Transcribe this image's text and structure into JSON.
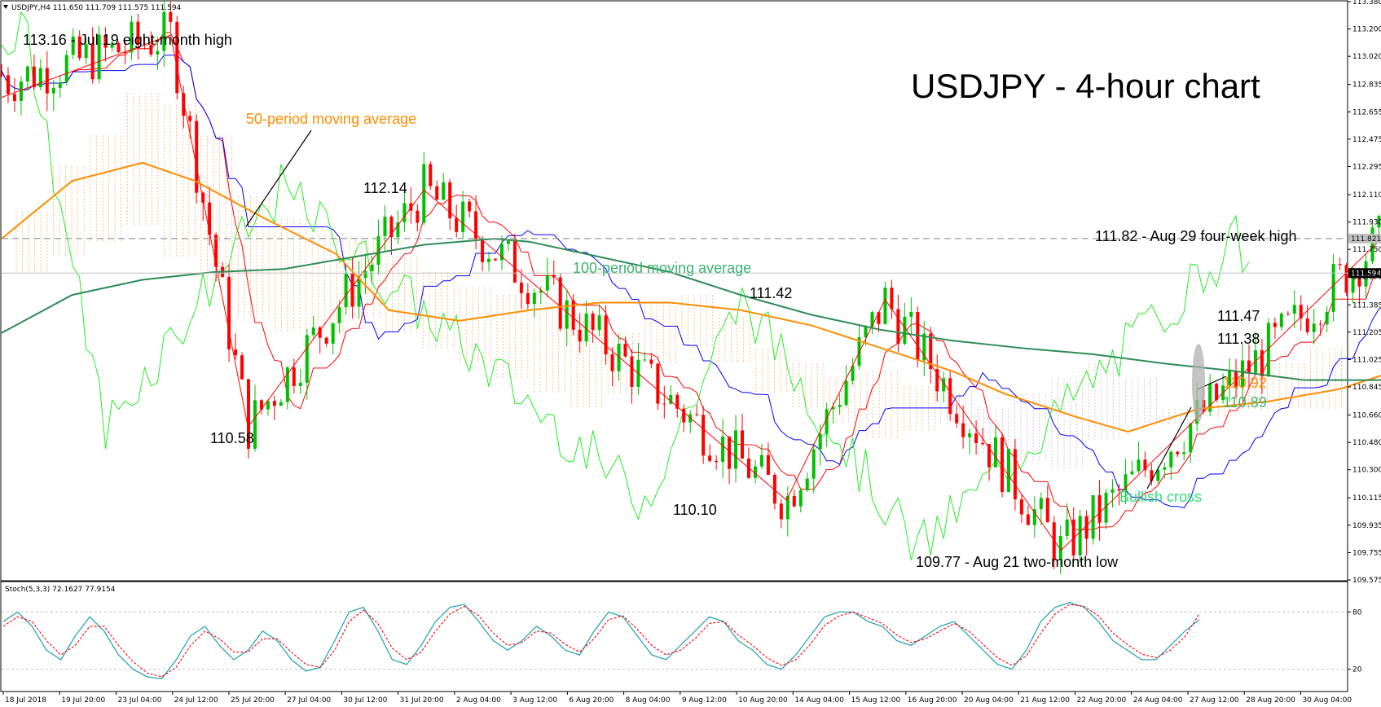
{
  "chart_data": {
    "type": "candlestick",
    "symbol": "USDJPY",
    "header": "USDJPY,H4  111.650 111.709 111.575 111.594",
    "title": "USDJPY - 4-hour chart",
    "ylim": [
      109.575,
      113.38
    ],
    "y_ticks": [
      "113.380",
      "113.200",
      "113.020",
      "112.835",
      "112.655",
      "112.475",
      "112.295",
      "112.110",
      "111.930",
      "111.750",
      "111.570",
      "111.385",
      "111.205",
      "111.025",
      "110.845",
      "110.660",
      "110.480",
      "110.300",
      "110.115",
      "109.935",
      "109.755",
      "109.575"
    ],
    "x_ticks": [
      "18 Jul 2018",
      "19 Jul 20:00",
      "23 Jul 04:00",
      "24 Jul 12:00",
      "25 Jul 20:00",
      "27 Jul 04:00",
      "30 Jul 12:00",
      "31 Jul 20:00",
      "2 Aug 04:00",
      "3 Aug 12:00",
      "6 Aug 20:00",
      "8 Aug 04:00",
      "9 Aug 12:00",
      "10 Aug 20:00",
      "14 Aug 04:00",
      "15 Aug 12:00",
      "16 Aug 20:00",
      "20 Aug 04:00",
      "21 Aug 12:00",
      "22 Aug 20:00",
      "24 Aug 04:00",
      "27 Aug 12:00",
      "28 Aug 20:00",
      "30 Aug 04:00"
    ],
    "price_markers": [
      {
        "value": 111.821,
        "label": "111.821",
        "style": "dashed-level"
      },
      {
        "value": 111.594,
        "label": "111.594",
        "style": "current"
      }
    ],
    "swing_points": [
      {
        "x": 0.48,
        "y": 113.16
      },
      {
        "x": 0.7,
        "y": 110.58
      },
      {
        "x": 1.2,
        "y": 112.14
      },
      {
        "x": 2.23,
        "y": 110.1
      },
      {
        "x": 2.51,
        "y": 111.42
      },
      {
        "x": 3.01,
        "y": 109.77
      },
      {
        "x": 3.92,
        "y": 111.82
      }
    ],
    "series": [
      {
        "name": "50-period moving average",
        "color": "#ff8c00",
        "x": [
          0,
          0.2,
          0.4,
          0.55,
          0.75,
          0.95,
          1.1,
          1.3,
          1.5,
          1.7,
          1.9,
          2.1,
          2.3,
          2.5,
          2.7,
          2.85,
          3.05,
          3.2,
          3.4,
          3.6,
          3.8,
          3.92
        ],
        "y": [
          111.82,
          112.2,
          112.32,
          112.2,
          111.95,
          111.72,
          111.35,
          111.28,
          111.35,
          111.4,
          111.4,
          111.35,
          111.25,
          111.1,
          110.95,
          110.8,
          110.65,
          110.55,
          110.7,
          110.75,
          110.83,
          110.92
        ]
      },
      {
        "name": "100-period moving average",
        "color": "#2e8b57",
        "x": [
          0,
          0.2,
          0.4,
          0.6,
          0.8,
          1.0,
          1.2,
          1.4,
          1.5,
          1.7,
          1.9,
          2.1,
          2.3,
          2.5,
          2.7,
          2.9,
          3.1,
          3.3,
          3.5,
          3.7,
          3.92
        ],
        "y": [
          111.2,
          111.45,
          111.55,
          111.6,
          111.62,
          111.7,
          111.78,
          111.82,
          111.8,
          111.7,
          111.6,
          111.45,
          111.32,
          111.22,
          111.15,
          111.1,
          111.06,
          111.0,
          110.95,
          110.89,
          110.89
        ]
      }
    ],
    "stochastic": {
      "label": "Stoch(5,3,3) 72.1627 77.9154",
      "ylim": [
        0,
        100
      ],
      "levels": [
        "80",
        "20"
      ],
      "main_color": "#2aa6b5",
      "signal_color": "#ff0000",
      "main": [
        70,
        80,
        65,
        40,
        30,
        55,
        75,
        60,
        35,
        20,
        12,
        10,
        30,
        55,
        65,
        45,
        30,
        40,
        60,
        50,
        30,
        18,
        22,
        50,
        80,
        85,
        60,
        30,
        25,
        45,
        70,
        85,
        88,
        70,
        50,
        40,
        50,
        65,
        55,
        40,
        35,
        60,
        80,
        75,
        55,
        35,
        30,
        45,
        60,
        75,
        70,
        50,
        40,
        25,
        20,
        35,
        55,
        75,
        80,
        80,
        70,
        65,
        50,
        45,
        55,
        65,
        70,
        55,
        40,
        25,
        20,
        40,
        70,
        85,
        90,
        85,
        70,
        50,
        40,
        30,
        30,
        45,
        60,
        72
      ],
      "signal": [
        65,
        75,
        70,
        50,
        35,
        45,
        65,
        65,
        45,
        28,
        16,
        12,
        22,
        45,
        60,
        52,
        38,
        38,
        52,
        52,
        38,
        25,
        22,
        40,
        70,
        82,
        68,
        42,
        30,
        38,
        60,
        78,
        86,
        76,
        58,
        45,
        48,
        60,
        58,
        46,
        38,
        52,
        72,
        76,
        62,
        45,
        35,
        40,
        52,
        68,
        70,
        56,
        45,
        32,
        24,
        30,
        46,
        66,
        76,
        80,
        74,
        68,
        56,
        48,
        52,
        60,
        68,
        60,
        46,
        32,
        24,
        34,
        58,
        78,
        88,
        86,
        76,
        58,
        46,
        36,
        32,
        40,
        54,
        78
      ]
    },
    "annotations": [
      {
        "text": "113.16 - Jul 19 eight-month high",
        "color": "#000000"
      },
      {
        "text": "50-period moving average",
        "color": "#ff8c00"
      },
      {
        "text": "112.14",
        "color": "#000000"
      },
      {
        "text": "100-period moving average",
        "color": "#3cb371"
      },
      {
        "text": "111.42",
        "color": "#000000"
      },
      {
        "text": "110.58",
        "color": "#000000"
      },
      {
        "text": "110.10",
        "color": "#000000"
      },
      {
        "text": "109.77 - Aug 21 two-month low",
        "color": "#000000"
      },
      {
        "text": "111.82 - Aug 29 four-week high",
        "color": "#000000"
      },
      {
        "text": "111.47",
        "color": "#000000"
      },
      {
        "text": "111.38",
        "color": "#000000"
      },
      {
        "text": "110.92",
        "color": "#ff8c00"
      },
      {
        "text": "110.89",
        "color": "#3cb371"
      },
      {
        "text": "Bullish cross",
        "color": "#33dd77"
      }
    ]
  }
}
